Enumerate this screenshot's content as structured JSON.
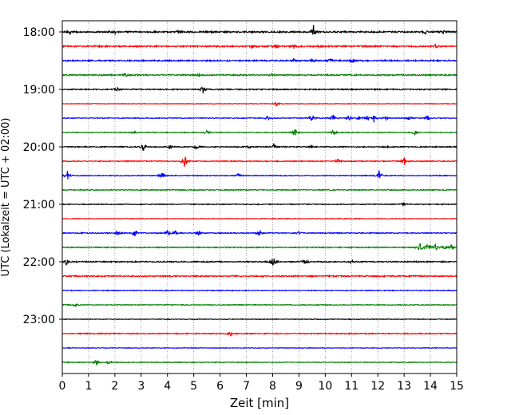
{
  "chart_data": {
    "type": "line",
    "title": "",
    "xlabel": "Zeit  [min]",
    "ylabel": "UTC (Lokalzeit = UTC + 02:00)",
    "xlim": [
      0,
      15
    ],
    "x_ticks": [
      "0",
      "1",
      "2",
      "3",
      "4",
      "5",
      "6",
      "7",
      "8",
      "9",
      "10",
      "11",
      "12",
      "13",
      "14",
      "15"
    ],
    "y_ticks": [
      {
        "label": "18:00",
        "trace": 0
      },
      {
        "label": "19:00",
        "trace": 4
      },
      {
        "label": "20:00",
        "trace": 8
      },
      {
        "label": "21:00",
        "trace": 12
      },
      {
        "label": "22:00",
        "trace": 16
      },
      {
        "label": "23:00",
        "trace": 20
      }
    ],
    "grid": "vertical dotted",
    "trace_colors": [
      "#000000",
      "#ff0000",
      "#0000ff",
      "#008000"
    ],
    "series": [
      {
        "start": "18:00",
        "noise": 0.9,
        "events": [
          [
            9.55,
            10
          ],
          [
            0.3,
            2
          ],
          [
            2.0,
            2
          ],
          [
            4.4,
            2
          ],
          [
            13.8,
            2
          ],
          [
            14.5,
            2
          ]
        ]
      },
      {
        "start": "18:15",
        "noise": 0.9,
        "events": [
          [
            7.2,
            2.5
          ],
          [
            8.1,
            2.5
          ],
          [
            8.8,
            2.5
          ],
          [
            9.8,
            2
          ],
          [
            14.2,
            2
          ]
        ]
      },
      {
        "start": "18:30",
        "noise": 0.8,
        "events": [
          [
            8.8,
            2
          ],
          [
            9.5,
            2
          ],
          [
            10.2,
            2
          ],
          [
            11.0,
            2
          ]
        ]
      },
      {
        "start": "18:45",
        "noise": 0.8,
        "events": [
          [
            2.4,
            2
          ],
          [
            5.2,
            2
          ],
          [
            8.0,
            2
          ]
        ]
      },
      {
        "start": "19:00",
        "noise": 0.7,
        "events": [
          [
            5.35,
            5
          ],
          [
            2.1,
            2
          ]
        ]
      },
      {
        "start": "19:15",
        "noise": 0.35,
        "events": [
          [
            8.15,
            4
          ]
        ]
      },
      {
        "start": "19:30",
        "noise": 0.5,
        "events": [
          [
            7.8,
            3
          ],
          [
            9.5,
            6
          ],
          [
            10.3,
            5
          ],
          [
            10.9,
            4
          ],
          [
            11.3,
            3
          ],
          [
            11.6,
            3
          ],
          [
            11.85,
            5
          ],
          [
            12.3,
            3
          ],
          [
            13.2,
            3
          ],
          [
            13.9,
            3
          ]
        ]
      },
      {
        "start": "19:45",
        "noise": 0.5,
        "events": [
          [
            2.7,
            2
          ],
          [
            5.5,
            3
          ],
          [
            8.85,
            6
          ],
          [
            10.3,
            5
          ],
          [
            13.4,
            4
          ]
        ]
      },
      {
        "start": "20:00",
        "noise": 0.6,
        "events": [
          [
            3.1,
            6
          ],
          [
            4.1,
            3
          ],
          [
            5.1,
            3
          ],
          [
            7.1,
            2.5
          ],
          [
            8.05,
            4
          ],
          [
            9.5,
            2
          ],
          [
            12.3,
            2
          ]
        ]
      },
      {
        "start": "20:15",
        "noise": 0.6,
        "events": [
          [
            4.65,
            9
          ],
          [
            10.5,
            4
          ],
          [
            13.0,
            6
          ]
        ]
      },
      {
        "start": "20:30",
        "noise": 0.5,
        "events": [
          [
            0.2,
            8
          ],
          [
            3.8,
            6
          ],
          [
            6.7,
            3
          ],
          [
            12.05,
            8
          ]
        ]
      },
      {
        "start": "20:45",
        "noise": 0.6,
        "events": []
      },
      {
        "start": "21:00",
        "noise": 0.5,
        "events": [
          [
            13.0,
            3
          ]
        ]
      },
      {
        "start": "21:15",
        "noise": 0.4,
        "events": []
      },
      {
        "start": "21:30",
        "noise": 0.6,
        "events": [
          [
            2.1,
            3
          ],
          [
            2.75,
            5
          ],
          [
            4.0,
            4
          ],
          [
            4.3,
            3
          ],
          [
            5.2,
            3
          ],
          [
            7.5,
            4
          ],
          [
            9.0,
            2
          ]
        ]
      },
      {
        "start": "21:45",
        "noise": 0.6,
        "events": [
          [
            13.6,
            6
          ],
          [
            13.9,
            6
          ],
          [
            14.2,
            5
          ],
          [
            14.5,
            4
          ],
          [
            14.8,
            4
          ]
        ]
      },
      {
        "start": "22:00",
        "noise": 0.7,
        "events": [
          [
            0.15,
            4
          ],
          [
            8.0,
            14
          ],
          [
            9.2,
            4
          ],
          [
            11.0,
            2
          ]
        ]
      },
      {
        "start": "22:15",
        "noise": 0.8,
        "events": []
      },
      {
        "start": "22:30",
        "noise": 0.5,
        "events": []
      },
      {
        "start": "22:45",
        "noise": 0.5,
        "events": [
          [
            0.5,
            3
          ]
        ]
      },
      {
        "start": "23:00",
        "noise": 0.4,
        "events": []
      },
      {
        "start": "23:15",
        "noise": 0.6,
        "events": [
          [
            6.4,
            3
          ]
        ]
      },
      {
        "start": "23:30",
        "noise": 0.35,
        "events": []
      },
      {
        "start": "23:45",
        "noise": 0.5,
        "events": [
          [
            1.3,
            4
          ],
          [
            1.8,
            3
          ]
        ]
      }
    ]
  }
}
